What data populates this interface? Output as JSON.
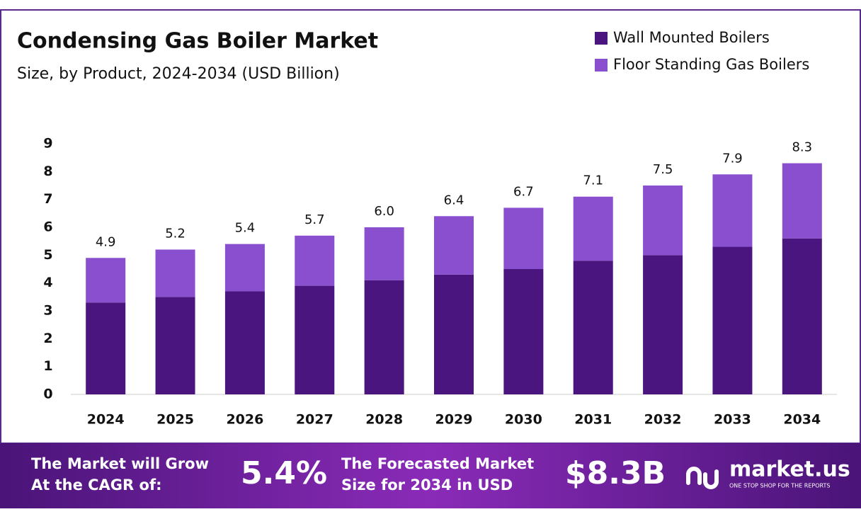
{
  "chart_data": {
    "type": "stacked-bar",
    "title": "Condensing Gas Boiler Market",
    "subtitle": "Size, by Product, 2024-2034 (USD Billion)",
    "categories": [
      "2024",
      "2025",
      "2026",
      "2027",
      "2028",
      "2029",
      "2030",
      "2031",
      "2032",
      "2033",
      "2034"
    ],
    "series": [
      {
        "name": "Wall Mounted Boilers",
        "color": "#4b1580",
        "values": [
          3.3,
          3.5,
          3.7,
          3.9,
          4.1,
          4.3,
          4.5,
          4.8,
          5.0,
          5.3,
          5.6
        ]
      },
      {
        "name": "Floor Standing Gas Boilers",
        "color": "#8a4fcf",
        "values": [
          1.6,
          1.7,
          1.7,
          1.8,
          1.9,
          2.1,
          2.2,
          2.3,
          2.5,
          2.6,
          2.7
        ]
      }
    ],
    "total_labels": [
      "4.9",
      "5.2",
      "5.4",
      "5.7",
      "6.0",
      "6.4",
      "6.7",
      "7.1",
      "7.5",
      "7.9",
      "8.3"
    ],
    "ylim": [
      0,
      9
    ],
    "yticks": [
      0,
      1,
      2,
      3,
      4,
      5,
      6,
      7,
      8,
      9
    ],
    "grid": false,
    "legend": "top-right"
  },
  "footer": {
    "cagr_text": [
      "The Market will Grow",
      "At the CAGR of:"
    ],
    "cagr_value": "5.4%",
    "forecast_text": [
      "The Forecasted Market",
      "Size for 2034 in USD"
    ],
    "forecast_value": "$8.3B",
    "brand": "market.us",
    "tagline": "ONE STOP SHOP FOR THE REPORTS"
  }
}
